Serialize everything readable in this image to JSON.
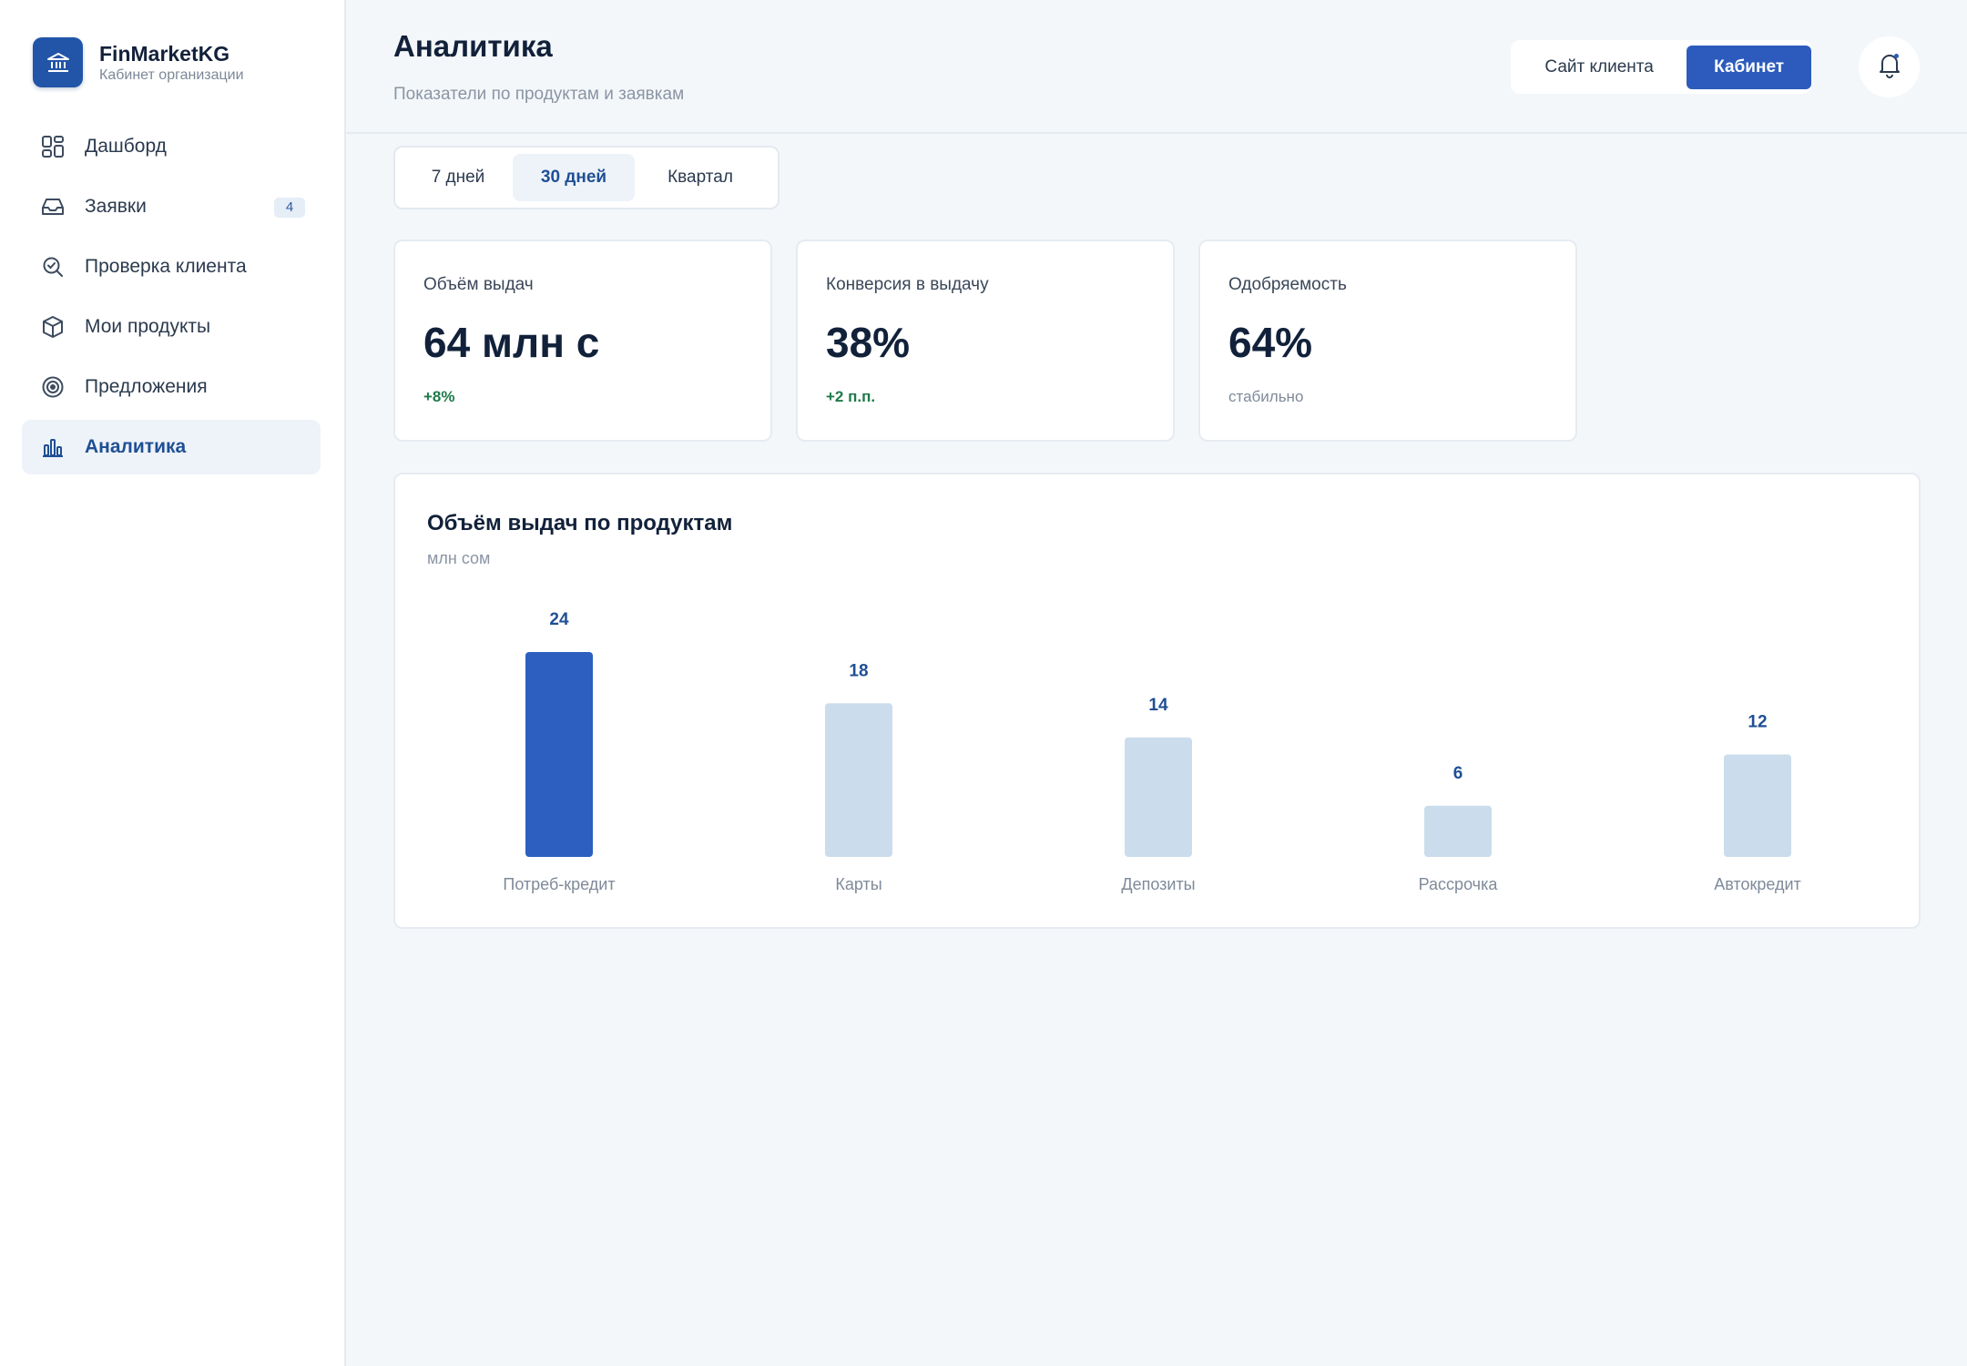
{
  "brand": {
    "name": "FinMarketKG",
    "subtitle": "Кабинет организации",
    "logo_icon": "bank-icon",
    "accent_color": "#2255a8"
  },
  "sidebar": {
    "items": [
      {
        "label": "Дашборд",
        "icon": "dashboard-icon"
      },
      {
        "label": "Заявки",
        "icon": "inbox-icon",
        "badge": "4"
      },
      {
        "label": "Проверка клиента",
        "icon": "search-check-icon"
      },
      {
        "label": "Мои продукты",
        "icon": "box-icon"
      },
      {
        "label": "Предложения",
        "icon": "target-icon"
      },
      {
        "label": "Аналитика",
        "icon": "bar-chart-icon",
        "active": true
      }
    ]
  },
  "header": {
    "title": "Аналитика",
    "subtitle": "Показатели по продуктам и заявкам",
    "client_site_label": "Сайт клиента",
    "cabinet_label": "Кабинет",
    "bell_icon": "bell-icon"
  },
  "period_tabs": {
    "items": [
      "7 дней",
      "30 дней",
      "Квартал"
    ],
    "selected": "30 дней"
  },
  "kpis": [
    {
      "label": "Объём выдач",
      "value": "64 млн с",
      "change": "+8%"
    },
    {
      "label": "Конверсия в выдачу",
      "value": "38%",
      "change": "+2 п.п."
    },
    {
      "label": "Одобряемость",
      "value": "64%",
      "change": "стабильно"
    }
  ],
  "colors": {
    "primary": "#2c5bbd",
    "bar_highlight": "#2c5fc0",
    "bar_default": "#cbdcec",
    "positive": "#1d7a48"
  },
  "chart": {
    "title": "Объём выдач по продуктам",
    "unit": "млн сом"
  },
  "chart_data": {
    "type": "bar",
    "title": "Объём выдач по продуктам",
    "subtitle": "млн сом",
    "categories": [
      "Потреб-кредит",
      "Карты",
      "Депозиты",
      "Рассрочка",
      "Автокредит"
    ],
    "values": [
      24,
      18,
      14,
      6,
      12
    ],
    "highlighted_index": 0,
    "data_labels": true,
    "grid": false,
    "legend": "none"
  }
}
